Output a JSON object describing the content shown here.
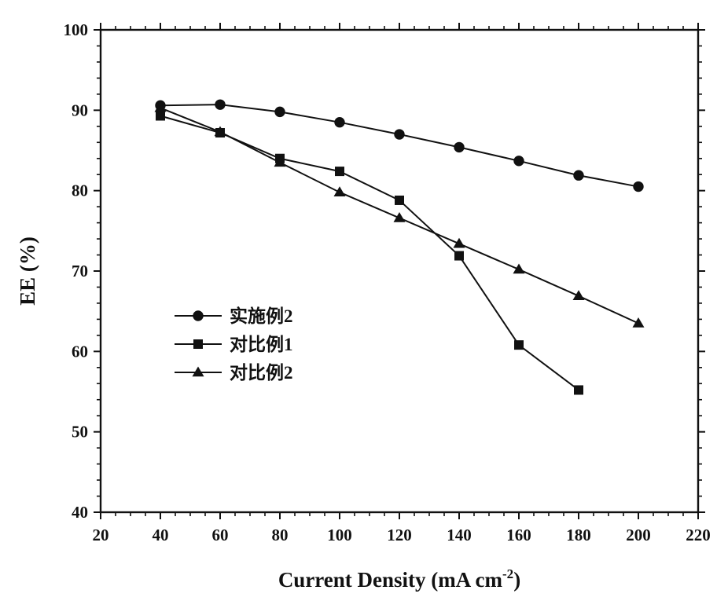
{
  "chart_data": {
    "type": "line",
    "xlabel": "Current Density (mA cm",
    "xlabel_sup": "-2",
    "xlabel_close": ")",
    "ylabel": "EE (%)",
    "xlim": [
      20,
      220
    ],
    "ylim": [
      40,
      100
    ],
    "xticks": [
      20,
      40,
      60,
      80,
      100,
      120,
      140,
      160,
      180,
      200,
      220
    ],
    "yticks": [
      40,
      50,
      60,
      70,
      80,
      90,
      100
    ],
    "grid": false,
    "legend_position": "center-left",
    "series": [
      {
        "name": "实施例2",
        "marker": "circle",
        "x": [
          40,
          60,
          80,
          100,
          120,
          140,
          160,
          180,
          200
        ],
        "y": [
          90.6,
          90.7,
          89.8,
          88.5,
          87.0,
          85.4,
          83.7,
          81.9,
          80.5
        ]
      },
      {
        "name": "对比例1",
        "marker": "square",
        "x": [
          40,
          60,
          80,
          100,
          120,
          140,
          160,
          180
        ],
        "y": [
          89.3,
          87.2,
          84.0,
          82.4,
          78.8,
          71.9,
          60.8,
          55.2
        ]
      },
      {
        "name": "对比例2",
        "marker": "triangle",
        "x": [
          40,
          60,
          80,
          100,
          120,
          140,
          160,
          180,
          200
        ],
        "y": [
          90.3,
          87.3,
          83.5,
          79.8,
          76.6,
          73.4,
          70.2,
          66.9,
          63.5
        ]
      }
    ]
  }
}
